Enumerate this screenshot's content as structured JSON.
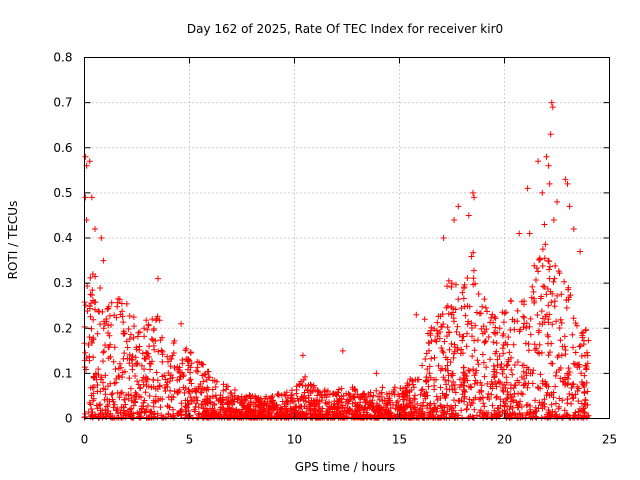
{
  "chart_data": {
    "type": "scatter",
    "title": "Day 162 of 2025, Rate Of TEC Index for receiver kir0",
    "xlabel": "GPS time / hours",
    "ylabel": "ROTI / TECUs",
    "xlim": [
      0,
      25
    ],
    "ylim": [
      0,
      0.8
    ],
    "xticks": [
      0,
      5,
      10,
      15,
      20,
      25
    ],
    "yticks": [
      0,
      0.1,
      0.2,
      0.3,
      0.4,
      0.5,
      0.6,
      0.7,
      0.8
    ],
    "xtick_labels": [
      "0",
      "5",
      "10",
      "15",
      "20",
      "25"
    ],
    "ytick_labels": [
      "0",
      "0.1",
      "0.2",
      "0.3",
      "0.4",
      "0.5",
      "0.6",
      "0.7",
      "0.8"
    ],
    "grid": true,
    "marker": "+",
    "color": "#ff0000",
    "envelope": [
      {
        "x": 0.0,
        "y": 0.3
      },
      {
        "x": 0.5,
        "y": 0.33
      },
      {
        "x": 1.0,
        "y": 0.28
      },
      {
        "x": 1.5,
        "y": 0.27
      },
      {
        "x": 2.0,
        "y": 0.26
      },
      {
        "x": 2.5,
        "y": 0.22
      },
      {
        "x": 3.0,
        "y": 0.22
      },
      {
        "x": 3.5,
        "y": 0.23
      },
      {
        "x": 4.0,
        "y": 0.19
      },
      {
        "x": 4.5,
        "y": 0.17
      },
      {
        "x": 5.0,
        "y": 0.15
      },
      {
        "x": 5.5,
        "y": 0.13
      },
      {
        "x": 6.0,
        "y": 0.1
      },
      {
        "x": 6.5,
        "y": 0.08
      },
      {
        "x": 7.0,
        "y": 0.07
      },
      {
        "x": 8.0,
        "y": 0.05
      },
      {
        "x": 9.0,
        "y": 0.05
      },
      {
        "x": 10.0,
        "y": 0.07
      },
      {
        "x": 10.5,
        "y": 0.1
      },
      {
        "x": 11.0,
        "y": 0.07
      },
      {
        "x": 12.0,
        "y": 0.06
      },
      {
        "x": 12.5,
        "y": 0.08
      },
      {
        "x": 13.0,
        "y": 0.06
      },
      {
        "x": 14.0,
        "y": 0.07
      },
      {
        "x": 15.0,
        "y": 0.07
      },
      {
        "x": 15.5,
        "y": 0.09
      },
      {
        "x": 16.0,
        "y": 0.11
      },
      {
        "x": 16.5,
        "y": 0.22
      },
      {
        "x": 17.0,
        "y": 0.27
      },
      {
        "x": 17.5,
        "y": 0.33
      },
      {
        "x": 18.0,
        "y": 0.28
      },
      {
        "x": 18.5,
        "y": 0.38
      },
      {
        "x": 19.0,
        "y": 0.27
      },
      {
        "x": 19.5,
        "y": 0.25
      },
      {
        "x": 20.0,
        "y": 0.24
      },
      {
        "x": 20.5,
        "y": 0.28
      },
      {
        "x": 21.0,
        "y": 0.3
      },
      {
        "x": 21.5,
        "y": 0.36
      },
      {
        "x": 22.0,
        "y": 0.4
      },
      {
        "x": 22.5,
        "y": 0.35
      },
      {
        "x": 23.0,
        "y": 0.3
      },
      {
        "x": 23.5,
        "y": 0.24
      },
      {
        "x": 24.0,
        "y": 0.2
      }
    ],
    "outliers": [
      {
        "x": 0.05,
        "y": 0.58
      },
      {
        "x": 0.1,
        "y": 0.56
      },
      {
        "x": 0.25,
        "y": 0.57
      },
      {
        "x": 0.05,
        "y": 0.49
      },
      {
        "x": 0.35,
        "y": 0.49
      },
      {
        "x": 0.5,
        "y": 0.42
      },
      {
        "x": 0.8,
        "y": 0.4
      },
      {
        "x": 0.9,
        "y": 0.35
      },
      {
        "x": 0.1,
        "y": 0.44
      },
      {
        "x": 0.4,
        "y": 0.32
      },
      {
        "x": 3.5,
        "y": 0.31
      },
      {
        "x": 4.6,
        "y": 0.21
      },
      {
        "x": 10.4,
        "y": 0.14
      },
      {
        "x": 12.3,
        "y": 0.15
      },
      {
        "x": 13.9,
        "y": 0.1
      },
      {
        "x": 15.8,
        "y": 0.23
      },
      {
        "x": 16.2,
        "y": 0.22
      },
      {
        "x": 17.1,
        "y": 0.4
      },
      {
        "x": 17.6,
        "y": 0.44
      },
      {
        "x": 17.8,
        "y": 0.47
      },
      {
        "x": 18.3,
        "y": 0.45
      },
      {
        "x": 18.5,
        "y": 0.5
      },
      {
        "x": 18.55,
        "y": 0.49
      },
      {
        "x": 20.7,
        "y": 0.41
      },
      {
        "x": 21.1,
        "y": 0.51
      },
      {
        "x": 21.6,
        "y": 0.57
      },
      {
        "x": 21.8,
        "y": 0.5
      },
      {
        "x": 22.0,
        "y": 0.58
      },
      {
        "x": 22.1,
        "y": 0.56
      },
      {
        "x": 22.15,
        "y": 0.52
      },
      {
        "x": 22.2,
        "y": 0.63
      },
      {
        "x": 22.25,
        "y": 0.7
      },
      {
        "x": 22.3,
        "y": 0.69
      },
      {
        "x": 22.35,
        "y": 0.44
      },
      {
        "x": 22.5,
        "y": 0.48
      },
      {
        "x": 22.9,
        "y": 0.53
      },
      {
        "x": 23.0,
        "y": 0.52
      },
      {
        "x": 23.1,
        "y": 0.47
      },
      {
        "x": 23.3,
        "y": 0.42
      },
      {
        "x": 23.6,
        "y": 0.37
      },
      {
        "x": 21.2,
        "y": 0.41
      },
      {
        "x": 21.9,
        "y": 0.43
      }
    ]
  }
}
